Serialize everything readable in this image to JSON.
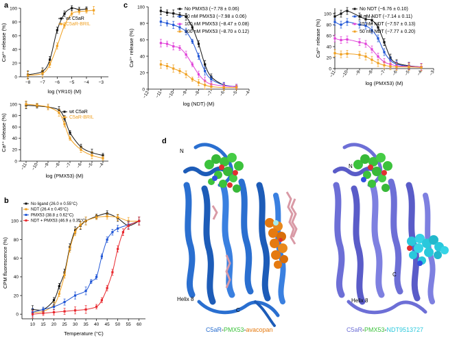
{
  "panels": {
    "a": "a",
    "b": "b",
    "c": "c",
    "d": "d"
  },
  "colors": {
    "black": "#111111",
    "orange": "#f0a020",
    "blue": "#1f55d6",
    "magenta": "#e040d8",
    "red": "#e8282e",
    "c5ar_blue": "#2a6fd0",
    "c5ar_purple": "#6d6fd6",
    "green_ligand": "#3cc23c",
    "cyan_ligand": "#29c8dc",
    "orange_ligand": "#e57a10",
    "lipid": "#d99aa6"
  },
  "chart_data": [
    {
      "id": "a-top",
      "type": "scatter",
      "xlabel": "log (YR10) (M)",
      "ylabel": "Ca²⁺ release (%)",
      "xlim": [
        -8.5,
        -2.5
      ],
      "ylim": [
        0,
        100
      ],
      "xticks": [
        -8,
        -7,
        -6,
        -5,
        -4,
        -3
      ],
      "yticks": [
        0,
        20,
        40,
        60,
        80,
        100
      ],
      "legend": "right",
      "series": [
        {
          "name": "wt C5aR",
          "color": "#111111",
          "x": [
            -8,
            -7,
            -6.5,
            -6,
            -5.5,
            -5,
            -4.5,
            -4
          ],
          "y": [
            3,
            8,
            25,
            68,
            92,
            100,
            98,
            99
          ]
        },
        {
          "name": "C5aR-BRIL",
          "color": "#f0a020",
          "x": [
            -8,
            -7,
            -6.5,
            -6,
            -5.5,
            -5,
            -4.5,
            -4,
            -3.5
          ],
          "y": [
            2,
            5,
            18,
            45,
            75,
            92,
            95,
            96,
            97
          ]
        }
      ]
    },
    {
      "id": "a-bottom",
      "type": "scatter",
      "xlabel": "log (PMX53) (M)",
      "ylabel": "Ca²⁺ release (%)",
      "xlim": [
        -11.5,
        -3.5
      ],
      "ylim": [
        0,
        100
      ],
      "xticks": [
        -11,
        -10,
        -9,
        -8,
        -7,
        -6,
        -5,
        -4
      ],
      "yticks": [
        0,
        20,
        40,
        60,
        80,
        100
      ],
      "legend": "top-right",
      "series": [
        {
          "name": "wt C5aR",
          "color": "#111111",
          "x": [
            -11,
            -10,
            -9,
            -8,
            -7.5,
            -7,
            -6,
            -5,
            -4
          ],
          "y": [
            98,
            97,
            95,
            90,
            75,
            50,
            25,
            15,
            10
          ]
        },
        {
          "name": "C5aR-BRIL",
          "color": "#f0a020",
          "x": [
            -11,
            -10,
            -9,
            -8,
            -7.5,
            -7,
            -6,
            -5,
            -4
          ],
          "y": [
            100,
            98,
            95,
            85,
            65,
            40,
            20,
            10,
            5
          ]
        }
      ]
    },
    {
      "id": "b",
      "type": "scatter",
      "xlabel": "Temperature (°C)",
      "ylabel": "CPM fluorescence (%)",
      "xlim": [
        5,
        63
      ],
      "ylim": [
        -5,
        115
      ],
      "xticks": [
        10,
        15,
        20,
        25,
        30,
        35,
        40,
        45,
        50,
        55,
        60
      ],
      "yticks": [
        0,
        20,
        40,
        60,
        80,
        100
      ],
      "legend": "top-left",
      "series": [
        {
          "name": "No ligand (26.0 ± 0.55°C)",
          "color": "#111111",
          "x": [
            10,
            15,
            20,
            22.5,
            25,
            27.5,
            30,
            32.5,
            35,
            40,
            45,
            50,
            55,
            60
          ],
          "y": [
            5,
            5,
            15,
            30,
            45,
            72,
            90,
            95,
            100,
            105,
            108,
            103,
            95,
            100
          ]
        },
        {
          "name": "NDT (26.4 ± 0.45°C)",
          "color": "#f0a020",
          "x": [
            10,
            15,
            20,
            22.5,
            25,
            27.5,
            30,
            32.5,
            35,
            40,
            45,
            50,
            55,
            60
          ],
          "y": [
            2,
            3,
            10,
            22,
            42,
            70,
            88,
            96,
            100,
            104,
            105,
            104,
            100,
            100
          ]
        },
        {
          "name": "PMX53 (38.8 ± 0.62°C)",
          "color": "#1f55d6",
          "x": [
            10,
            15,
            20,
            25,
            30,
            35,
            37.5,
            40,
            42.5,
            45,
            47.5,
            50,
            55,
            60
          ],
          "y": [
            2,
            5,
            8,
            13,
            20,
            25,
            35,
            40,
            62,
            80,
            88,
            92,
            96,
            100
          ]
        },
        {
          "name": "NDT + PMX53 (46.9 ± 0.35°C)",
          "color": "#e8282e",
          "x": [
            10,
            15,
            20,
            25,
            30,
            35,
            40,
            42.5,
            45,
            47.5,
            50,
            52.5,
            55,
            60
          ],
          "y": [
            0,
            1,
            2,
            3,
            4,
            5,
            8,
            15,
            28,
            45,
            70,
            88,
            95,
            100
          ]
        }
      ]
    },
    {
      "id": "c-left",
      "type": "scatter",
      "xlabel": "log (NDT) (M)",
      "ylabel": "Ca²⁺ release (%)",
      "xlim": [
        -12,
        -4
      ],
      "ylim": [
        0,
        100
      ],
      "xticks": [
        -12,
        -11,
        -10,
        -9,
        -8,
        -7,
        -6,
        -5,
        -4
      ],
      "yticks": [
        0,
        20,
        40,
        60,
        80,
        100
      ],
      "legend": "top-right",
      "series": [
        {
          "name": "No PMX53 (−7.78 ± 0.06)",
          "color": "#111111",
          "x": [
            -11,
            -10.5,
            -10,
            -9.5,
            -9,
            -8.5,
            -8,
            -7.5,
            -7,
            -6,
            -5
          ],
          "y": [
            95,
            93,
            92,
            90,
            88,
            75,
            55,
            30,
            15,
            5,
            3
          ]
        },
        {
          "name": "30 nM PMX53 (−7.98 ± 0.06)",
          "color": "#1f55d6",
          "x": [
            -11,
            -10.5,
            -10,
            -9.5,
            -9,
            -8.5,
            -8,
            -7.5,
            -7,
            -6,
            -5
          ],
          "y": [
            82,
            80,
            78,
            75,
            70,
            58,
            40,
            22,
            12,
            5,
            3
          ]
        },
        {
          "name": "100 nM PMX53 (−8.47 ± 0.08)",
          "color": "#e040d8",
          "x": [
            -11,
            -10.5,
            -10,
            -9.5,
            -9,
            -8.5,
            -8,
            -7.5,
            -7,
            -6,
            -5
          ],
          "y": [
            56,
            55,
            52,
            50,
            42,
            30,
            18,
            10,
            6,
            4,
            3
          ]
        },
        {
          "name": "300 nM PMX53 (−8.70 ± 0.12)",
          "color": "#f0a020",
          "x": [
            -11,
            -10.5,
            -10,
            -9.5,
            -9,
            -8.5,
            -8,
            -7.5,
            -7,
            -6,
            -5
          ],
          "y": [
            30,
            28,
            25,
            22,
            18,
            12,
            8,
            5,
            3,
            2,
            2
          ]
        }
      ]
    },
    {
      "id": "c-right",
      "type": "scatter",
      "xlabel": "log (PMX53) (M)",
      "ylabel": "Ca²⁺ release (%)",
      "xlim": [
        -11,
        -3
      ],
      "ylim": [
        0,
        110
      ],
      "xticks": [
        -11,
        -10,
        -9,
        -8,
        -7,
        -6,
        -5,
        -4,
        -3
      ],
      "yticks": [
        0,
        20,
        40,
        60,
        80,
        100
      ],
      "legend": "top-right",
      "series": [
        {
          "name": "No NDT (−6.76 ± 0.10)",
          "color": "#111111",
          "x": [
            -11,
            -10.5,
            -10,
            -9,
            -8.5,
            -8,
            -7.5,
            -7,
            -6.5,
            -6,
            -5,
            -4
          ],
          "y": [
            95,
            100,
            105,
            95,
            90,
            88,
            75,
            48,
            20,
            10,
            5,
            3
          ]
        },
        {
          "name": "3 nM NDT (−7.14 ± 0.11)",
          "color": "#1f55d6",
          "x": [
            -11,
            -10.5,
            -10,
            -9,
            -8.5,
            -8,
            -7.5,
            -7,
            -6.5,
            -6,
            -5,
            -4
          ],
          "y": [
            85,
            80,
            85,
            80,
            78,
            70,
            55,
            30,
            15,
            8,
            4,
            3
          ]
        },
        {
          "name": "15 nM NDT (−7.57 ± 0.13)",
          "color": "#e040d8",
          "x": [
            -11,
            -10.5,
            -10,
            -9,
            -8.5,
            -8,
            -7.5,
            -7,
            -6.5,
            -6,
            -5,
            -4
          ],
          "y": [
            55,
            52,
            53,
            48,
            45,
            35,
            22,
            12,
            8,
            5,
            4,
            3
          ]
        },
        {
          "name": "50 nM NDT (−7.77 ± 0.20)",
          "color": "#f0a020",
          "x": [
            -11,
            -10.5,
            -10,
            -9,
            -8.5,
            -8,
            -7.5,
            -7,
            -6.5,
            -6,
            -5,
            -4
          ],
          "y": [
            28,
            26,
            27,
            25,
            22,
            16,
            10,
            6,
            4,
            3,
            3,
            2
          ]
        }
      ]
    }
  ],
  "structures": {
    "left": {
      "label_N": "N",
      "label_C": "C",
      "label_helix": "Helix 8",
      "caption_part1": "C5aR",
      "caption_sep1": "-",
      "caption_part2": "PMX53",
      "caption_sep2": "-",
      "caption_part3": "avacopan"
    },
    "right": {
      "label_N": "N",
      "label_C": "C",
      "label_helix": "Helix 8",
      "caption_part1": "C5aR",
      "caption_sep1": "-",
      "caption_part2": "PMX53",
      "caption_sep2": "-",
      "caption_part3": "NDT9513727"
    }
  }
}
